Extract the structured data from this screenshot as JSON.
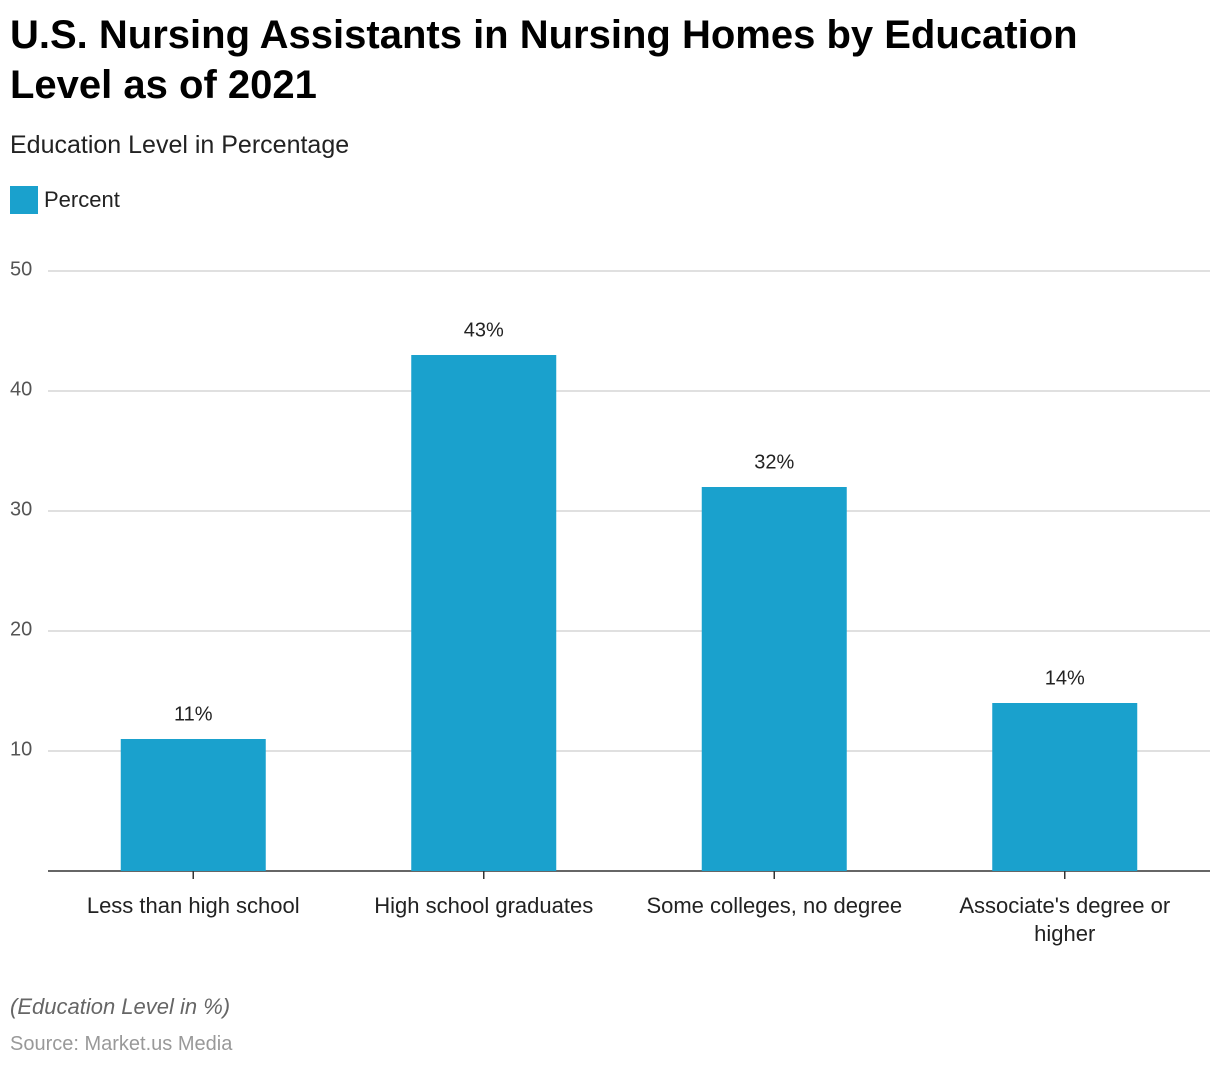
{
  "chart_data": {
    "type": "bar",
    "title": "U.S. Nursing Assistants in Nursing Homes by Education Level as of 2021",
    "subtitle": "Education Level in Percentage",
    "categories": [
      "Less than high school",
      "High school graduates",
      "Some colleges, no degree",
      "Associate's degree or higher"
    ],
    "series": [
      {
        "name": "Percent",
        "color": "#1aa1cd",
        "values": [
          11,
          43,
          32,
          14
        ],
        "value_labels": [
          "11%",
          "43%",
          "32%",
          "14%"
        ]
      }
    ],
    "ylim": [
      0,
      50
    ],
    "yticks": [
      10,
      20,
      30,
      40,
      50
    ],
    "grid": true,
    "legend": "top-left",
    "note": "(Education Level in %)",
    "source": "Source: Market.us Media"
  }
}
